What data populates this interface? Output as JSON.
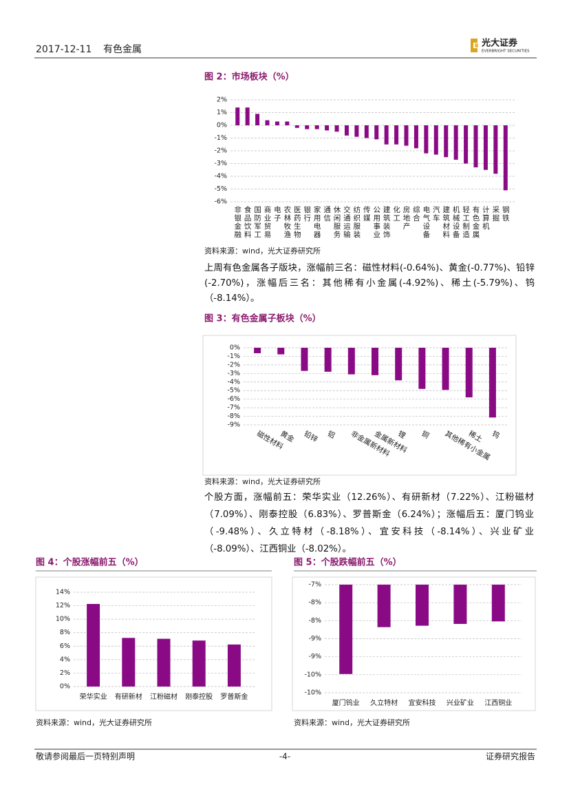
{
  "header": {
    "date": "2017-12-11",
    "sector": "有色金属",
    "logo": "光大证券",
    "logo_en": "EVERBRIGHT SECURITIES"
  },
  "chart_data": [
    {
      "type": "bar",
      "title": "图 2：市场板块（%）",
      "source": "资料来源：wind，光大证券研究所",
      "color": "#8a0a86",
      "grid": true,
      "categories": [
        "非银金融",
        "食品饮料",
        "国防军工",
        "商业贸易",
        "电子",
        "农林牧渔",
        "医药生物",
        "银行",
        "家用电器",
        "通信",
        "休闲服务",
        "交通运输",
        "纺织服装",
        "传媒",
        "公用事业",
        "建筑装饰",
        "化工",
        "房地产",
        "综合",
        "电气设备",
        "汽车",
        "建筑材料",
        "机械设备",
        "轻工制造",
        "有色金属",
        "计算机",
        "采掘",
        "钢铁"
      ],
      "values": [
        1.4,
        1.4,
        0.9,
        0.4,
        0.3,
        0.3,
        -0.2,
        -0.3,
        -0.3,
        -0.4,
        -0.5,
        -0.8,
        -0.9,
        -1.0,
        -1.1,
        -1.5,
        -1.5,
        -1.6,
        -1.8,
        -2.2,
        -2.3,
        -2.5,
        -2.7,
        -3.0,
        -3.3,
        -3.5,
        -3.8,
        -5.1
      ],
      "ylim": [
        -6,
        2
      ],
      "yticks": [
        {
          "value": 2,
          "label": "2%"
        },
        {
          "value": 1,
          "label": "1%"
        },
        {
          "value": 0,
          "label": "0%"
        },
        {
          "value": -1,
          "label": "-1%"
        },
        {
          "value": -2,
          "label": "-2%"
        },
        {
          "value": -3,
          "label": "-3%"
        },
        {
          "value": -4,
          "label": "-4%"
        },
        {
          "value": -5,
          "label": "-5%"
        },
        {
          "value": -6,
          "label": "-6%"
        }
      ]
    },
    {
      "type": "bar",
      "title": "图 3：有色金属子板块（%）",
      "source": "资料来源：wind，光大证券研究所",
      "color": "#8a0a86",
      "grid": true,
      "categories": [
        "磁性材料",
        "黄金",
        "铅锌",
        "铝",
        "非金属新材料",
        "金属新材料",
        "锂",
        "铜",
        "其他稀有小金属",
        "稀土",
        "钨"
      ],
      "values": [
        -0.64,
        -0.77,
        -2.7,
        -2.8,
        -3.1,
        -3.2,
        -3.8,
        -4.8,
        -4.92,
        -5.79,
        -8.14
      ],
      "ylim": [
        -9,
        0
      ],
      "yticks": [
        {
          "value": 0,
          "label": "0%"
        },
        {
          "value": -1,
          "label": "-1%"
        },
        {
          "value": -2,
          "label": "-2%"
        },
        {
          "value": -3,
          "label": "-3%"
        },
        {
          "value": -4,
          "label": "-4%"
        },
        {
          "value": -5,
          "label": "-5%"
        },
        {
          "value": -6,
          "label": "-6%"
        },
        {
          "value": -7,
          "label": "-7%"
        },
        {
          "value": -8,
          "label": "-8%"
        },
        {
          "value": -9,
          "label": "-9%"
        }
      ]
    },
    {
      "type": "bar",
      "title": "图 4：个股涨幅前五（%）",
      "source": "资料来源：wind，光大证券研究所",
      "color": "#8a0a86",
      "grid": true,
      "categories": [
        "荣华实业",
        "有研新材",
        "江粉磁材",
        "刚泰控股",
        "罗普斯金"
      ],
      "values": [
        12.26,
        7.22,
        7.09,
        6.83,
        6.24
      ],
      "ylim": [
        0,
        14
      ],
      "yticks": [
        {
          "value": 14,
          "label": "14%"
        },
        {
          "value": 12,
          "label": "12%"
        },
        {
          "value": 10,
          "label": "10%"
        },
        {
          "value": 8,
          "label": "8%"
        },
        {
          "value": 6,
          "label": "6%"
        },
        {
          "value": 4,
          "label": "4%"
        },
        {
          "value": 2,
          "label": "2%"
        },
        {
          "value": 0,
          "label": "0%"
        }
      ]
    },
    {
      "type": "bar",
      "title": "图 5：个股跌幅前五（%）",
      "source": "资料来源：wind，光大证券研究所",
      "color": "#8a0a86",
      "grid": true,
      "categories": [
        "厦门钨业",
        "久立特材",
        "宜安科技",
        "兴业矿业",
        "江西铜业"
      ],
      "values": [
        -9.48,
        -8.18,
        -8.14,
        -8.09,
        -8.02
      ],
      "ylim": [
        -10,
        -7
      ],
      "yticks": [
        {
          "value": -7,
          "label": "-7%"
        },
        {
          "value": -7.5,
          "label": "-8%"
        },
        {
          "value": -8,
          "label": "-8%"
        },
        {
          "value": -8.5,
          "label": "-9%"
        },
        {
          "value": -9,
          "label": "-9%"
        },
        {
          "value": -9.5,
          "label": "-10%"
        },
        {
          "value": -10,
          "label": "-10%"
        }
      ]
    }
  ],
  "paragraphs": [
    "上周有色金属各子版块，涨幅前三名：磁性材料(-0.64%)、黄金(-0.77%)、铅锌(-2.70%)，涨幅后三名：其他稀有小金属(-4.92%)、稀土(-5.79%)、钨（-8.14%）。",
    "个股方面，涨幅前五：荣华实业（12.26%）、有研新材（7.22%）、江粉磁材（7.09%）、刚泰控股（6.83%）、罗普斯金（6.24%）；涨幅后五：厦门钨业（-9.48%）、久立特材（-8.18%）、宜安科技（-8.14%）、兴业矿业（-8.09%）、江西铜业（-8.02%）。"
  ],
  "footer": {
    "disclaimer": "敬请参阅最后一页特别声明",
    "page": "-4-",
    "doc_type": "证券研究报告"
  }
}
